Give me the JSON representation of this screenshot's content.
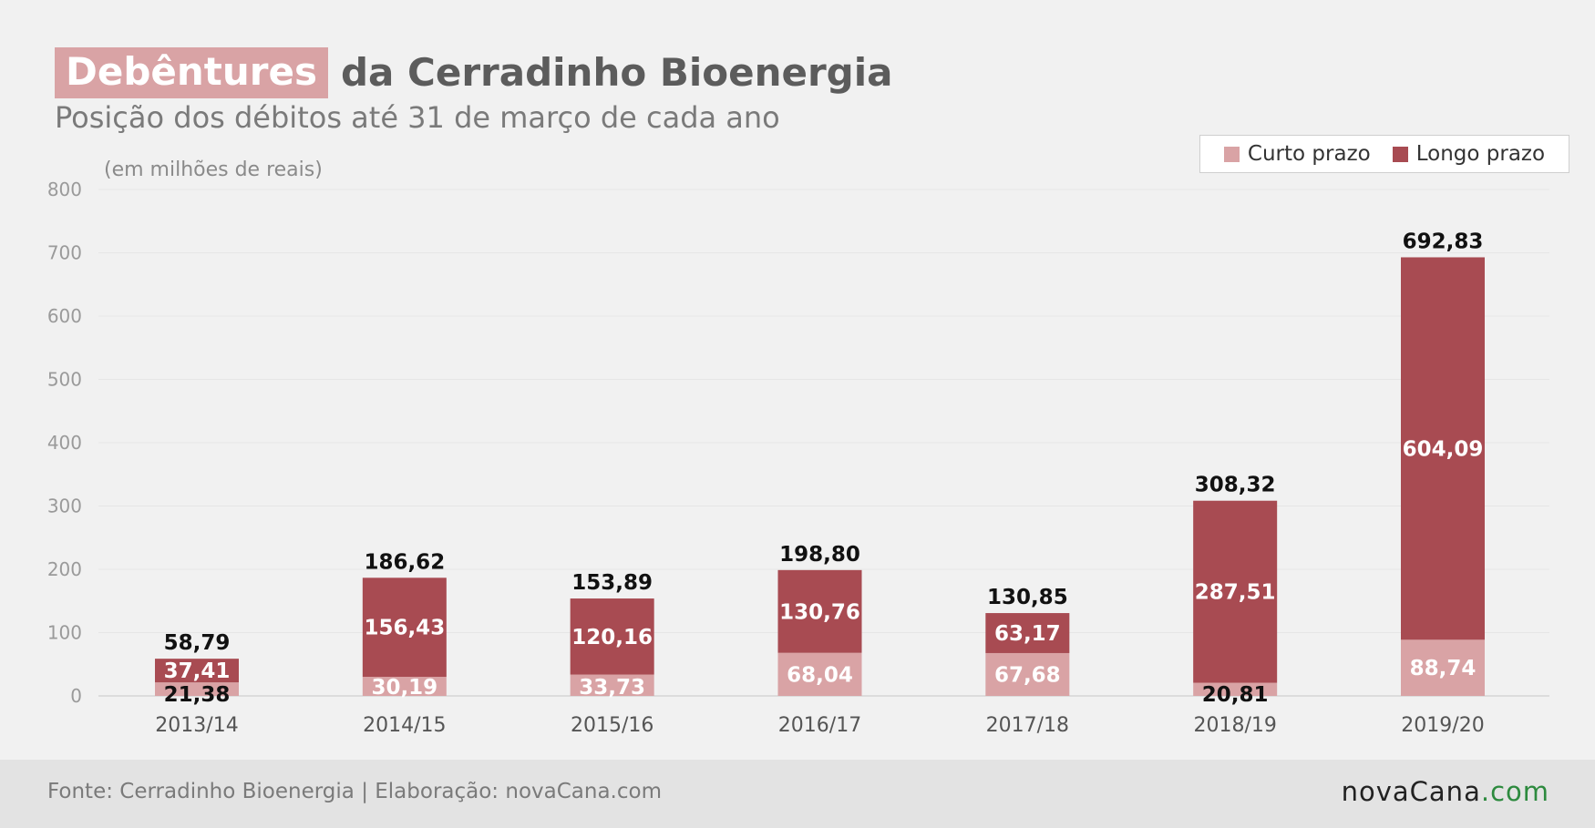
{
  "header": {
    "title_highlight": "Debêntures",
    "title_rest": "da Cerradinho Bioenergia",
    "subtitle": "Posição dos débitos até 31 de março de cada ano"
  },
  "legend": {
    "items": [
      {
        "label": "Curto prazo",
        "color": "#d9a3a5"
      },
      {
        "label": "Longo prazo",
        "color": "#a84b52"
      }
    ]
  },
  "footer": {
    "source": "Fonte: Cerradinho Bioenergia | Elaboração: novaCana.com",
    "logo_main": "novaCana",
    "logo_dot": ".",
    "logo_tld": "com"
  },
  "chart_data": {
    "type": "bar",
    "stacked": true,
    "unit_label": "(em milhões de reais)",
    "categories": [
      "2013/14",
      "2014/15",
      "2015/16",
      "2016/17",
      "2017/18",
      "2018/19",
      "2019/20"
    ],
    "series": [
      {
        "name": "Curto prazo",
        "color": "#d9a3a5",
        "values": [
          21.38,
          30.19,
          33.73,
          68.04,
          67.68,
          20.81,
          88.74
        ],
        "labels": [
          "21,38",
          "30,19",
          "33,73",
          "68,04",
          "67,68",
          "20,81",
          "88,74"
        ]
      },
      {
        "name": "Longo prazo",
        "color": "#a84b52",
        "values": [
          37.41,
          156.43,
          120.16,
          130.76,
          63.17,
          287.51,
          604.09
        ],
        "labels": [
          "37,41",
          "156,43",
          "120,16",
          "130,76",
          "63,17",
          "287,51",
          "604,09"
        ]
      }
    ],
    "totals": [
      58.79,
      186.62,
      153.89,
      198.8,
      130.85,
      308.32,
      692.83
    ],
    "total_labels": [
      "58,79",
      "186,62",
      "153,89",
      "198,80",
      "130,85",
      "308,32",
      "692,83"
    ],
    "yticks": [
      "0",
      "100",
      "200",
      "300",
      "400",
      "500",
      "600",
      "700",
      "800"
    ],
    "ylim": [
      0,
      800
    ],
    "grid": true,
    "legend_position": "top-right"
  }
}
